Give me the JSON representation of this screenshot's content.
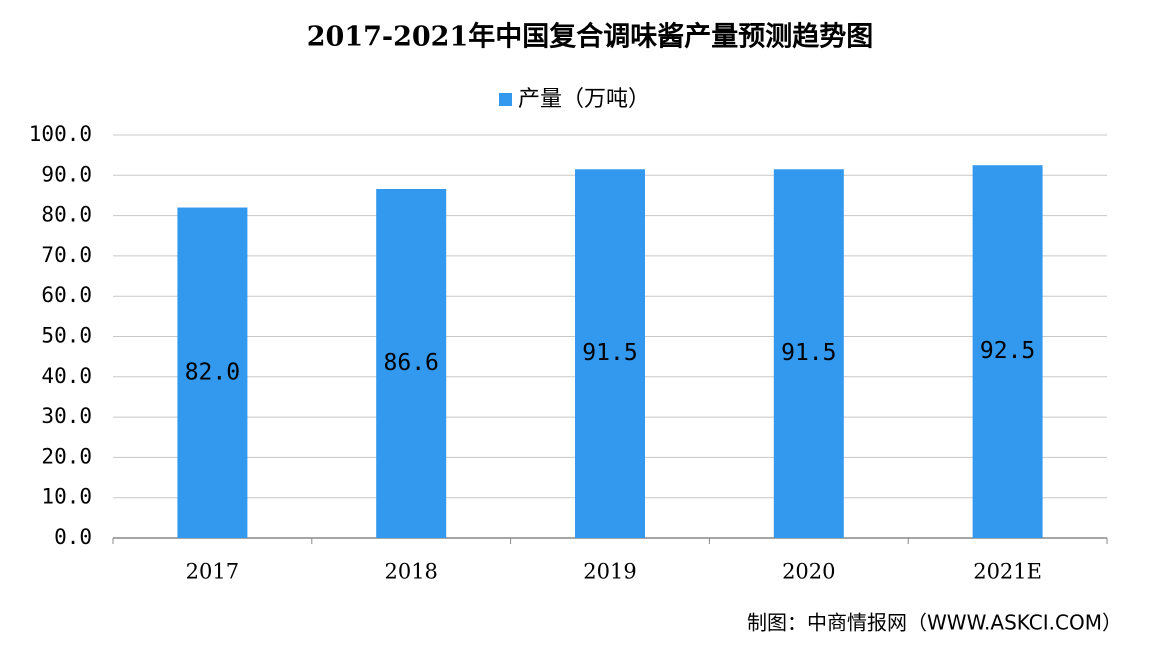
{
  "chart_data": {
    "type": "bar",
    "title": "2017-2021年中国复合调味酱产量预测趋势图",
    "source": "制图：中商情报网（WWW.ASKCI.COM）",
    "categories": [
      "2017",
      "2018",
      "2019",
      "2020",
      "2021E"
    ],
    "series": [
      {
        "name": "产量（万吨）",
        "color": "#3399ee",
        "values": [
          82.0,
          86.6,
          91.5,
          91.5,
          92.5
        ],
        "value_labels": [
          "82.0",
          "86.6",
          "91.5",
          "91.5",
          "92.5"
        ]
      }
    ],
    "ylim": [
      0,
      100
    ],
    "yticks": [
      {
        "value": 0,
        "label": "0.0"
      },
      {
        "value": 10,
        "label": "10.0"
      },
      {
        "value": 20,
        "label": "20.0"
      },
      {
        "value": 30,
        "label": "30.0"
      },
      {
        "value": 40,
        "label": "40.0"
      },
      {
        "value": 50,
        "label": "50.0"
      },
      {
        "value": 60,
        "label": "60.0"
      },
      {
        "value": 70,
        "label": "70.0"
      },
      {
        "value": 80,
        "label": "80.0"
      },
      {
        "value": 90,
        "label": "90.0"
      },
      {
        "value": 100,
        "label": "100.0"
      }
    ],
    "grid": true,
    "legend": "top"
  }
}
